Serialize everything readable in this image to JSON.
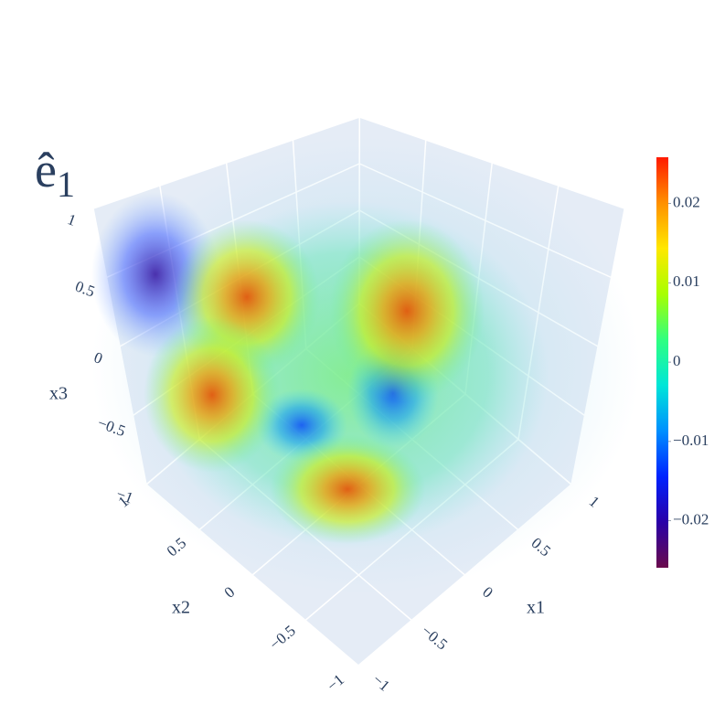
{
  "chart_data": {
    "type": "volume",
    "title": {
      "text": "ê",
      "subscript": "1"
    },
    "x_label": "x1",
    "xlim": [
      -1,
      1
    ],
    "xticks": [
      {
        "value": -1,
        "label": "−1"
      },
      {
        "value": -0.5,
        "label": "−0.5"
      },
      0,
      0.5,
      1
    ],
    "y_label": "x2",
    "ylim": [
      -1,
      1
    ],
    "yticks": [
      {
        "value": -1,
        "label": "−1"
      },
      {
        "value": -0.5,
        "label": "−0.5"
      },
      0,
      0.5,
      1
    ],
    "z_label": "x3",
    "zlim": [
      -1,
      1
    ],
    "zticks": [
      {
        "value": -1,
        "label": "−1"
      },
      {
        "value": -0.5,
        "label": "−0.5"
      },
      0,
      0.5,
      1
    ],
    "grid": true,
    "colorbar": {
      "lim": [
        -0.0259,
        0.0258
      ],
      "ticks": [
        {
          "value": -0.02,
          "label": "−0.02"
        },
        {
          "value": -0.01,
          "label": "−0.01"
        },
        0,
        0.01,
        0.02
      ],
      "colors": [
        "#6a0a4c",
        "#2a00a8",
        "#0022ff",
        "#0090ff",
        "#00e6d8",
        "#30ff80",
        "#a8ff00",
        "#ffe800",
        "#ff9000",
        "#ff1a00"
      ]
    }
  }
}
